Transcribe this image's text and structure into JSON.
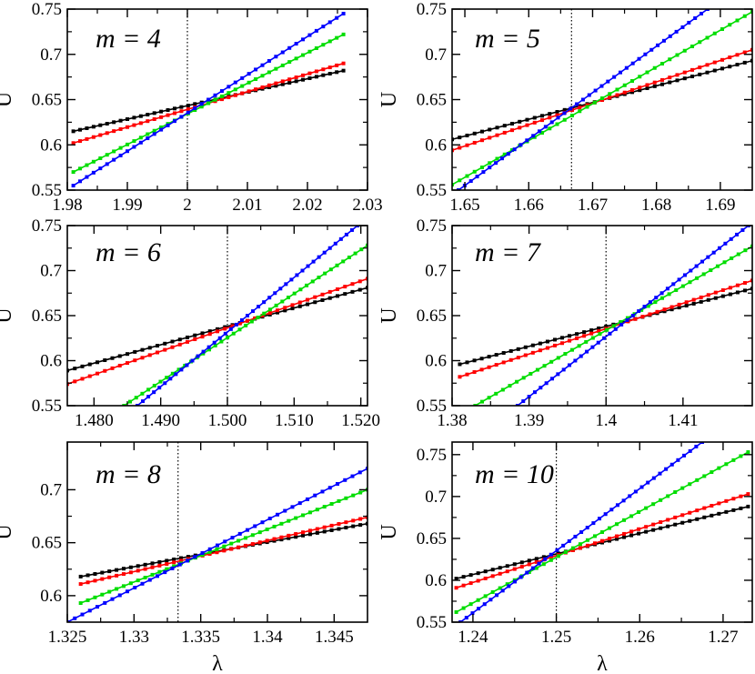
{
  "chart_data": [
    {
      "type": "line",
      "label": "m = 4",
      "ylabel": "U",
      "xlabel": "",
      "xlim": [
        1.98,
        2.03
      ],
      "ylim": [
        0.55,
        0.75
      ],
      "xticks": [
        1.98,
        1.99,
        2.0,
        2.01,
        2.02,
        2.03
      ],
      "xtick_labels": [
        "1.98",
        "1.99",
        "2",
        "2.01",
        "2.02",
        "2.03"
      ],
      "yticks": [
        0.55,
        0.6,
        0.65,
        0.7,
        0.75
      ],
      "ytick_labels": [
        "0.55",
        "0.6",
        "0.65",
        "0.7",
        "0.75"
      ],
      "vline": 2.0,
      "x_range": [
        1.981,
        2.026
      ],
      "series": [
        {
          "name": "black",
          "color": "#000000",
          "x_start": 1.981,
          "y_start": 0.615,
          "x_end": 2.026,
          "y_end": 0.682
        },
        {
          "name": "red",
          "color": "#ff0000",
          "x_start": 1.981,
          "y_start": 0.602,
          "x_end": 2.026,
          "y_end": 0.69
        },
        {
          "name": "green",
          "color": "#00dd00",
          "x_start": 1.981,
          "y_start": 0.57,
          "x_end": 2.026,
          "y_end": 0.722
        },
        {
          "name": "blue",
          "color": "#0000ff",
          "x_start": 1.981,
          "y_start": 0.555,
          "x_end": 2.026,
          "y_end": 0.745
        }
      ]
    },
    {
      "type": "line",
      "label": "m = 5",
      "ylabel": "U",
      "xlabel": "",
      "xlim": [
        1.648,
        1.695
      ],
      "ylim": [
        0.55,
        0.75
      ],
      "xticks": [
        1.65,
        1.66,
        1.67,
        1.68,
        1.69
      ],
      "xtick_labels": [
        "1.65",
        "1.66",
        "1.67",
        "1.68",
        "1.69"
      ],
      "yticks": [
        0.55,
        0.6,
        0.65,
        0.7,
        0.75
      ],
      "ytick_labels": [
        "0.55",
        "0.6",
        "0.65",
        "0.7",
        "0.75"
      ],
      "vline": 1.6667,
      "x_range": [
        1.648,
        1.695
      ],
      "series": [
        {
          "name": "black",
          "color": "#000000",
          "x_start": 1.648,
          "y_start": 0.606,
          "x_end": 1.695,
          "y_end": 0.693
        },
        {
          "name": "red",
          "color": "#ff0000",
          "x_start": 1.648,
          "y_start": 0.594,
          "x_end": 1.695,
          "y_end": 0.705
        },
        {
          "name": "green",
          "color": "#00dd00",
          "x_start": 1.648,
          "y_start": 0.556,
          "x_end": 1.695,
          "y_end": 0.747
        },
        {
          "name": "blue",
          "color": "#0000ff",
          "x_start": 1.649,
          "y_start": 0.55,
          "x_end": 1.688,
          "y_end": 0.75
        }
      ]
    },
    {
      "type": "line",
      "label": "m = 6",
      "ylabel": "U",
      "xlabel": "",
      "xlim": [
        1.476,
        1.521
      ],
      "ylim": [
        0.55,
        0.75
      ],
      "xticks": [
        1.48,
        1.49,
        1.5,
        1.51,
        1.52
      ],
      "xtick_labels": [
        "1.480",
        "1.490",
        "1.500",
        "1.510",
        "1.520"
      ],
      "yticks": [
        0.55,
        0.6,
        0.65,
        0.7,
        0.75
      ],
      "ytick_labels": [
        "0.55",
        "0.6",
        "0.65",
        "0.7",
        "0.75"
      ],
      "vline": 1.5,
      "x_range": [
        1.476,
        1.521
      ],
      "series": [
        {
          "name": "black",
          "color": "#000000",
          "x_start": 1.476,
          "y_start": 0.589,
          "x_end": 1.521,
          "y_end": 0.681
        },
        {
          "name": "red",
          "color": "#ff0000",
          "x_start": 1.476,
          "y_start": 0.574,
          "x_end": 1.521,
          "y_end": 0.691
        },
        {
          "name": "green",
          "color": "#00dd00",
          "x_start": 1.4845,
          "y_start": 0.55,
          "x_end": 1.521,
          "y_end": 0.728
        },
        {
          "name": "blue",
          "color": "#0000ff",
          "x_start": 1.4865,
          "y_start": 0.55,
          "x_end": 1.5195,
          "y_end": 0.75
        }
      ]
    },
    {
      "type": "line",
      "label": "m = 7",
      "ylabel": "U",
      "xlabel": "",
      "xlim": [
        1.38,
        1.419
      ],
      "ylim": [
        0.55,
        0.75
      ],
      "xticks": [
        1.38,
        1.39,
        1.4,
        1.41
      ],
      "xtick_labels": [
        "1.38",
        "1.39",
        "1.4",
        "1.41"
      ],
      "yticks": [
        0.55,
        0.6,
        0.65,
        0.7,
        0.75
      ],
      "ytick_labels": [
        "0.55",
        "0.6",
        "0.65",
        "0.7",
        "0.75"
      ],
      "vline": 1.4,
      "x_range": [
        1.381,
        1.419
      ],
      "series": [
        {
          "name": "black",
          "color": "#000000",
          "x_start": 1.381,
          "y_start": 0.596,
          "x_end": 1.419,
          "y_end": 0.68
        },
        {
          "name": "red",
          "color": "#ff0000",
          "x_start": 1.381,
          "y_start": 0.582,
          "x_end": 1.419,
          "y_end": 0.689
        },
        {
          "name": "green",
          "color": "#00dd00",
          "x_start": 1.383,
          "y_start": 0.55,
          "x_end": 1.419,
          "y_end": 0.727
        },
        {
          "name": "blue",
          "color": "#0000ff",
          "x_start": 1.3885,
          "y_start": 0.55,
          "x_end": 1.4185,
          "y_end": 0.75
        }
      ]
    },
    {
      "type": "line",
      "label": "m = 8",
      "ylabel": "U",
      "xlabel": "λ",
      "xlim": [
        1.325,
        1.3475
      ],
      "ylim": [
        0.575,
        0.745
      ],
      "xticks": [
        1.325,
        1.33,
        1.335,
        1.34,
        1.345
      ],
      "xtick_labels": [
        "1.325",
        "1.33",
        "1.335",
        "1.34",
        "1.345"
      ],
      "yticks": [
        0.6,
        0.65,
        0.7
      ],
      "ytick_labels": [
        "0.6",
        "0.65",
        "0.7"
      ],
      "vline": 1.3333,
      "x_range": [
        1.326,
        1.3475
      ],
      "series": [
        {
          "name": "black",
          "color": "#000000",
          "x_start": 1.326,
          "y_start": 0.618,
          "x_end": 1.3475,
          "y_end": 0.668
        },
        {
          "name": "red",
          "color": "#ff0000",
          "x_start": 1.326,
          "y_start": 0.611,
          "x_end": 1.3475,
          "y_end": 0.674
        },
        {
          "name": "green",
          "color": "#00dd00",
          "x_start": 1.326,
          "y_start": 0.593,
          "x_end": 1.3475,
          "y_end": 0.7
        },
        {
          "name": "blue",
          "color": "#0000ff",
          "x_start": 1.325,
          "y_start": 0.575,
          "x_end": 1.3475,
          "y_end": 0.72
        }
      ]
    },
    {
      "type": "line",
      "label": "m = 10",
      "ylabel": "U",
      "xlabel": "λ",
      "xlim": [
        1.2375,
        1.2735
      ],
      "ylim": [
        0.55,
        0.765
      ],
      "xticks": [
        1.24,
        1.25,
        1.26,
        1.27
      ],
      "xtick_labels": [
        "1.24",
        "1.25",
        "1.26",
        "1.27"
      ],
      "yticks": [
        0.55,
        0.6,
        0.65,
        0.7,
        0.75
      ],
      "ytick_labels": [
        "0.55",
        "0.6",
        "0.65",
        "0.7",
        "0.75"
      ],
      "vline": 1.25,
      "x_range": [
        1.238,
        1.273
      ],
      "series": [
        {
          "name": "black",
          "color": "#000000",
          "x_start": 1.238,
          "y_start": 0.602,
          "x_end": 1.273,
          "y_end": 0.688
        },
        {
          "name": "red",
          "color": "#ff0000",
          "x_start": 1.238,
          "y_start": 0.591,
          "x_end": 1.273,
          "y_end": 0.703
        },
        {
          "name": "green",
          "color": "#00dd00",
          "x_start": 1.238,
          "y_start": 0.562,
          "x_end": 1.273,
          "y_end": 0.753
        },
        {
          "name": "blue",
          "color": "#0000ff",
          "x_start": 1.2385,
          "y_start": 0.55,
          "x_end": 1.2675,
          "y_end": 0.765
        }
      ]
    }
  ]
}
